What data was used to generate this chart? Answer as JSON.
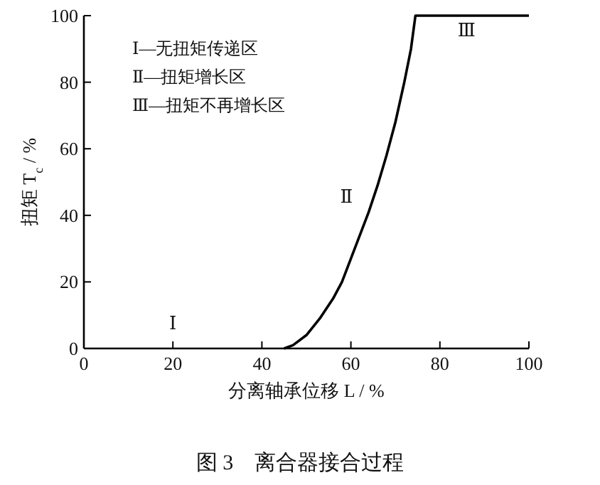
{
  "chart_data": {
    "type": "line",
    "title": "图 3　离合器接合过程",
    "xlabel": "分离轴承位移 L / %",
    "ylabel": "扭矩 T$_{c}$ / %",
    "series": [
      {
        "color": "#000000",
        "x": [
          45,
          47,
          50,
          53,
          56,
          58,
          60,
          62,
          64,
          66,
          68,
          70,
          72,
          73.5,
          74.5,
          100
        ],
        "values": [
          0,
          1,
          4,
          9,
          15,
          20,
          27,
          34,
          41,
          49,
          58,
          68,
          80,
          90,
          100,
          100
        ]
      }
    ],
    "xlim": [
      0,
      100
    ],
    "ylim": [
      0,
      100
    ],
    "xticks": [
      0,
      20,
      40,
      60,
      80,
      100
    ],
    "yticks": [
      0,
      20,
      40,
      60,
      80,
      100
    ],
    "grid": false,
    "marker": "none",
    "line_style": "solid",
    "annotations": [
      "Ⅰ—无扭矩传递区",
      "Ⅱ—扭矩增长区",
      "Ⅲ—扭矩不再增长区",
      "Ⅰ",
      "Ⅱ",
      "Ⅲ"
    ]
  }
}
